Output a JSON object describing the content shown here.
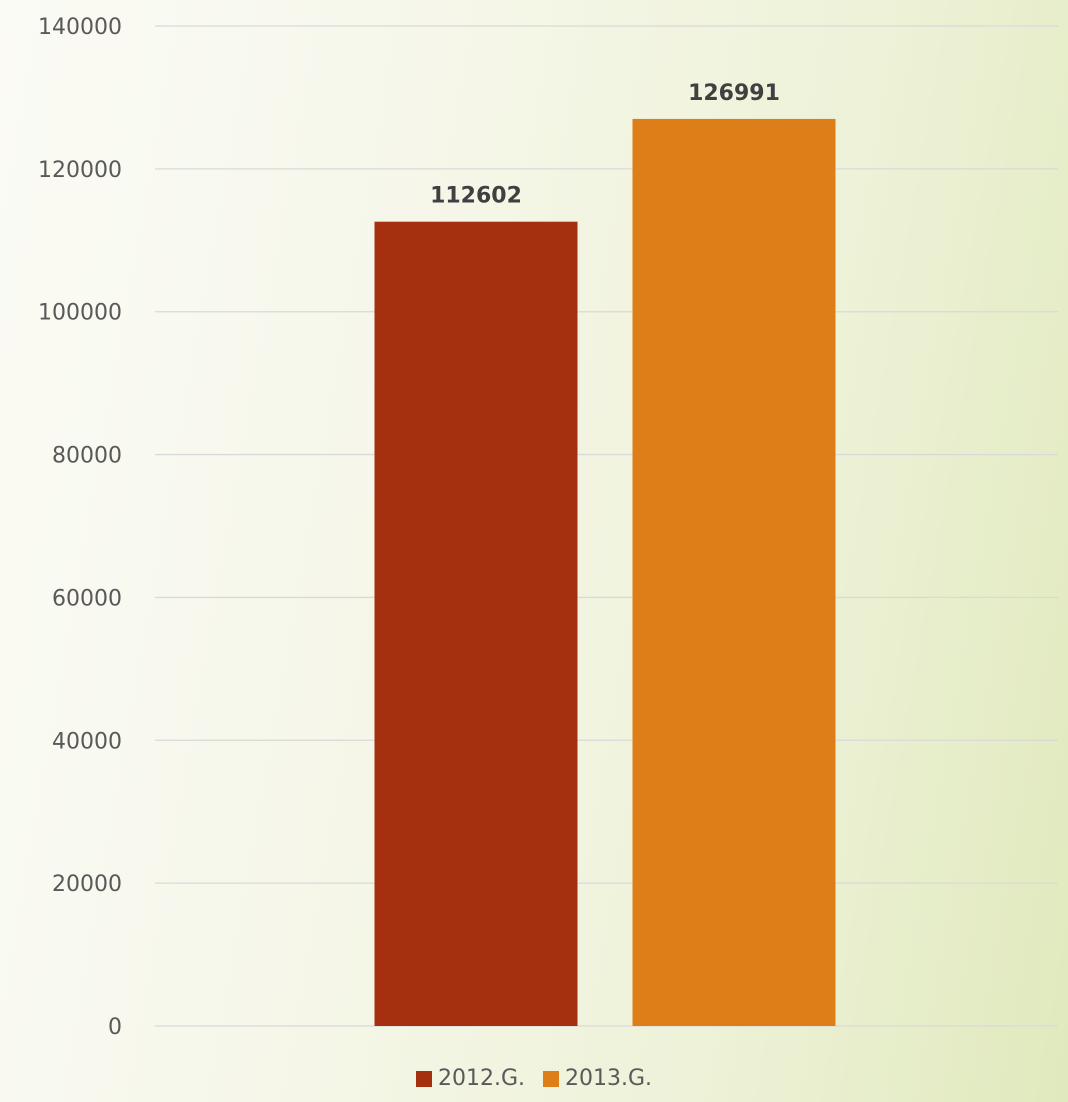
{
  "chart_data": {
    "type": "bar",
    "categories": [
      ""
    ],
    "series": [
      {
        "name": "2012.G.",
        "values": [
          112602
        ],
        "color": "#A5300F"
      },
      {
        "name": "2013.G.",
        "values": [
          126991
        ],
        "color": "#DE7E18"
      }
    ],
    "data_labels": [
      "112602",
      "126991"
    ],
    "ylim": [
      0,
      140000
    ],
    "yticks": [
      "0",
      "20000",
      "40000",
      "60000",
      "80000",
      "100000",
      "120000",
      "140000"
    ],
    "title": "",
    "xlabel": "",
    "ylabel": "",
    "grid": true,
    "legend_position": "bottom"
  }
}
